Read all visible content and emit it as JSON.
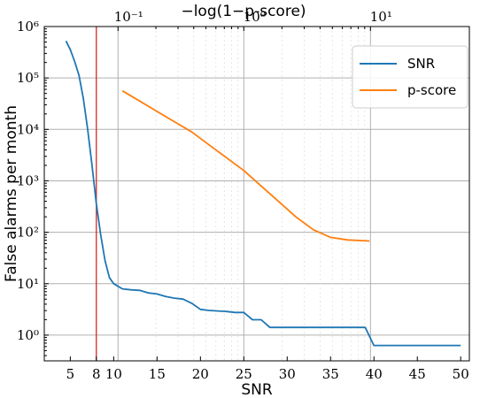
{
  "chart_data": {
    "type": "line",
    "xlabel": "SNR",
    "ylabel": "False alarms per month",
    "top_xlabel": "−log(1−p-score)",
    "yscale": "log",
    "ylim_exp": [
      -0.5,
      6
    ],
    "xlim": [
      2,
      51
    ],
    "top_xscale": "log",
    "grid": true,
    "legend_placement": "top-right",
    "x_ticks": [
      {
        "value": 5,
        "label": "5"
      },
      {
        "value": 8,
        "label": "8"
      },
      {
        "value": 10,
        "label": "10"
      },
      {
        "value": 15,
        "label": "15"
      },
      {
        "value": 20,
        "label": "20"
      },
      {
        "value": 25,
        "label": "25"
      },
      {
        "value": 30,
        "label": "30"
      },
      {
        "value": 35,
        "label": "35"
      },
      {
        "value": 40,
        "label": "40"
      },
      {
        "value": 45,
        "label": "45"
      },
      {
        "value": 50,
        "label": "50"
      }
    ],
    "top_ticks": [
      {
        "value": 10.5,
        "label": "10⁻¹"
      },
      {
        "value": 25.0,
        "label": "10⁰"
      },
      {
        "value": 39.6,
        "label": "10¹"
      }
    ],
    "y_ticks": [
      {
        "exp": 0,
        "label": "10⁰"
      },
      {
        "exp": 1,
        "label": "10¹"
      },
      {
        "exp": 2,
        "label": "10²"
      },
      {
        "exp": 3,
        "label": "10³"
      },
      {
        "exp": 4,
        "label": "10⁴"
      },
      {
        "exp": 5,
        "label": "10⁵"
      },
      {
        "exp": 6,
        "label": "10⁶"
      }
    ],
    "threshold_line": {
      "x": 8,
      "color": "#d62728"
    },
    "series": [
      {
        "name": "SNR",
        "color": "#1f77b4",
        "points": [
          [
            4.5,
            5.72
          ],
          [
            5.0,
            5.55
          ],
          [
            5.5,
            5.32
          ],
          [
            6.0,
            5.05
          ],
          [
            6.5,
            4.6
          ],
          [
            7.0,
            4.0
          ],
          [
            7.5,
            3.3
          ],
          [
            8.0,
            2.55
          ],
          [
            8.5,
            1.95
          ],
          [
            9.0,
            1.45
          ],
          [
            9.5,
            1.12
          ],
          [
            10.0,
            1.0
          ],
          [
            10.5,
            0.95
          ],
          [
            11,
            0.9
          ],
          [
            12,
            0.88
          ],
          [
            13,
            0.87
          ],
          [
            14,
            0.82
          ],
          [
            15,
            0.8
          ],
          [
            16,
            0.75
          ],
          [
            17,
            0.72
          ],
          [
            18,
            0.7
          ],
          [
            19,
            0.62
          ],
          [
            20,
            0.5
          ],
          [
            21,
            0.48
          ],
          [
            22,
            0.47
          ],
          [
            23,
            0.46
          ],
          [
            24,
            0.44
          ],
          [
            25,
            0.44
          ],
          [
            26,
            0.3
          ],
          [
            27,
            0.3
          ],
          [
            28,
            0.15
          ],
          [
            29,
            0.15
          ],
          [
            32,
            0.15
          ],
          [
            35,
            0.15
          ],
          [
            39,
            0.15
          ],
          [
            40,
            -0.2
          ],
          [
            45,
            -0.2
          ],
          [
            50,
            -0.2
          ]
        ]
      },
      {
        "name": "p-score",
        "color": "#ff7f0e",
        "points": [
          [
            11,
            4.75
          ],
          [
            13,
            4.55
          ],
          [
            15,
            4.35
          ],
          [
            17,
            4.15
          ],
          [
            19,
            3.95
          ],
          [
            21,
            3.7
          ],
          [
            23,
            3.45
          ],
          [
            25,
            3.2
          ],
          [
            27,
            2.9
          ],
          [
            29,
            2.6
          ],
          [
            31,
            2.3
          ],
          [
            33,
            2.05
          ],
          [
            35,
            1.9
          ],
          [
            37,
            1.85
          ],
          [
            39.5,
            1.83
          ]
        ]
      }
    ]
  }
}
